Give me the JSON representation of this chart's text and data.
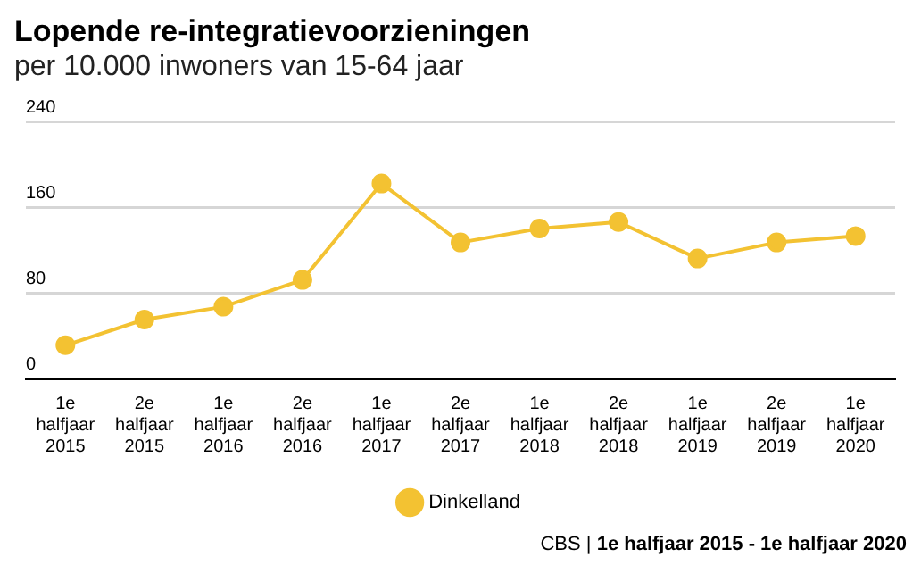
{
  "chart_data": {
    "type": "line",
    "title": "Lopende re-integratievoorzieningen",
    "subtitle": "per 10.000 inwoners van 15-64 jaar",
    "categories": [
      "1e halfjaar 2015",
      "2e halfjaar 2015",
      "1e halfjaar 2016",
      "2e halfjaar 2016",
      "1e halfjaar 2017",
      "2e halfjaar 2017",
      "1e halfjaar 2018",
      "2e halfjaar 2018",
      "1e halfjaar 2019",
      "2e halfjaar 2019",
      "1e halfjaar 2020"
    ],
    "series": [
      {
        "name": "Dinkelland",
        "color": "#f3c232",
        "values": [
          31,
          55,
          67,
          92,
          182,
          127,
          140,
          146,
          112,
          127,
          133
        ]
      }
    ],
    "ylim": [
      0,
      240
    ],
    "yticks": [
      0,
      80,
      160,
      240
    ],
    "grid": "y",
    "legend": "bottom",
    "marker": "circle",
    "line_style": "solid",
    "annotations": [
      "CBS | 1e halfjaar 2015 - 1e halfjaar 2020"
    ]
  }
}
